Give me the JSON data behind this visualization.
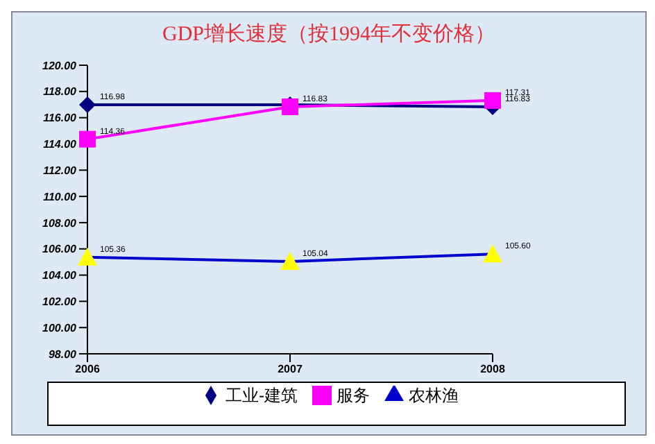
{
  "chart_data": {
    "type": "line",
    "title": "GDP增长速度（按1994年不变价格）",
    "categories": [
      "2006",
      "2007",
      "2008"
    ],
    "series": [
      {
        "name": "工业-建筑",
        "color": "#000080",
        "marker": "diamond",
        "values": [
          116.98,
          116.98,
          116.83
        ],
        "value_labels": [
          "116.98",
          null,
          "116.83"
        ]
      },
      {
        "name": "服务",
        "color": "#ff00ff",
        "marker": "square",
        "values": [
          114.36,
          116.83,
          117.31
        ],
        "value_labels": [
          "114.36",
          "116.83",
          "117.31"
        ]
      },
      {
        "name": "农林渔",
        "color": "#0000cc",
        "marker": "triangle",
        "values": [
          105.36,
          105.04,
          105.6
        ],
        "value_labels": [
          "105.36",
          "105.04",
          "105.60"
        ]
      }
    ],
    "ylim": [
      98,
      120
    ],
    "yticks": [
      {
        "value": 98,
        "label": "98.00"
      },
      {
        "value": 100,
        "label": "100.00"
      },
      {
        "value": 102,
        "label": "102.00"
      },
      {
        "value": 104,
        "label": "104.00"
      },
      {
        "value": 106,
        "label": "106.00"
      },
      {
        "value": 108,
        "label": "108.00"
      },
      {
        "value": 110,
        "label": "110.00"
      },
      {
        "value": 112,
        "label": "112.00"
      },
      {
        "value": 114,
        "label": "114.00"
      },
      {
        "value": 116,
        "label": "116.00"
      },
      {
        "value": 118,
        "label": "118.00"
      },
      {
        "value": 120,
        "label": "120.00"
      }
    ],
    "grid": false,
    "legend": "bottom"
  }
}
